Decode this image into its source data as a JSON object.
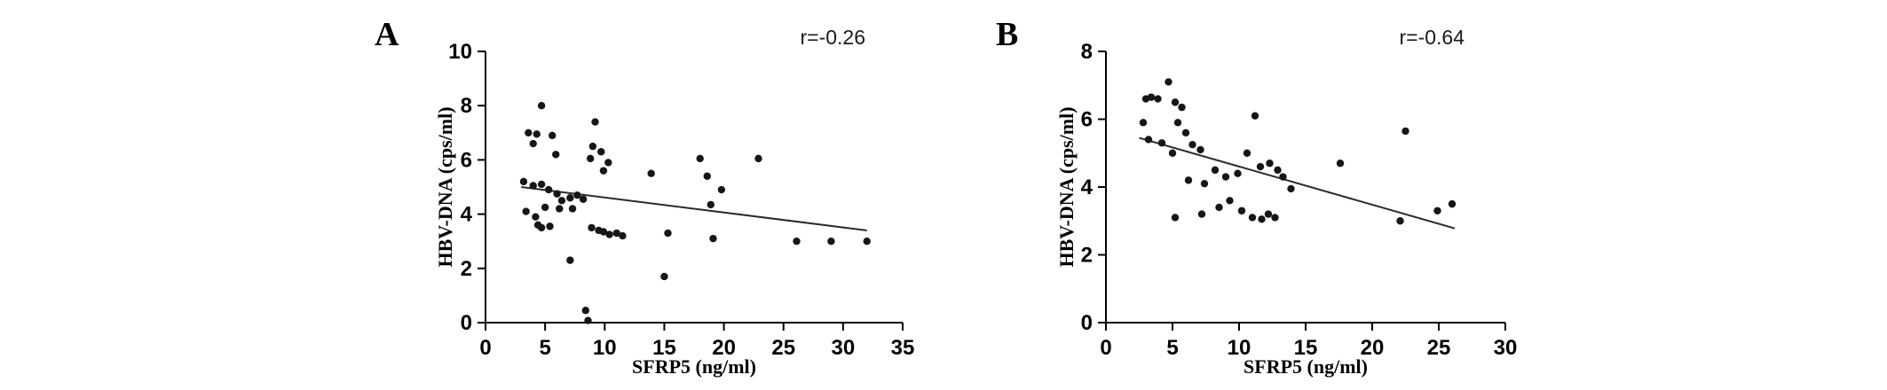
{
  "figure": {
    "background": "#ffffff",
    "ink_color": "#000000",
    "point_color": "#161616"
  },
  "chart_data": [
    {
      "type": "scatter",
      "panel_label": "A",
      "annotation": "r=-0.26",
      "xlabel": "SFRP5 (ng/ml)",
      "ylabel": "HBV-DNA (cps/ml)",
      "xlim": [
        0,
        35
      ],
      "ylim": [
        0,
        10
      ],
      "xticks": [
        0,
        5,
        10,
        15,
        20,
        25,
        30,
        35
      ],
      "yticks": [
        0,
        2,
        4,
        6,
        8,
        10
      ],
      "grid": false,
      "legend": "none",
      "trendline": {
        "x": [
          3,
          32
        ],
        "y": [
          5.0,
          3.4
        ]
      },
      "points": [
        [
          4.7,
          8.0
        ],
        [
          3.6,
          7.0
        ],
        [
          4.3,
          6.95
        ],
        [
          5.6,
          6.9
        ],
        [
          4.0,
          6.6
        ],
        [
          9.2,
          7.4
        ],
        [
          9.0,
          6.5
        ],
        [
          5.9,
          6.2
        ],
        [
          8.8,
          6.05
        ],
        [
          9.7,
          6.3
        ],
        [
          10.3,
          5.9
        ],
        [
          9.9,
          5.6
        ],
        [
          13.9,
          5.5
        ],
        [
          18.0,
          6.05
        ],
        [
          22.9,
          6.05
        ],
        [
          18.6,
          5.4
        ],
        [
          19.8,
          4.9
        ],
        [
          3.2,
          5.2
        ],
        [
          4.0,
          5.05
        ],
        [
          4.7,
          5.1
        ],
        [
          5.3,
          4.9
        ],
        [
          6.0,
          4.75
        ],
        [
          6.4,
          4.5
        ],
        [
          7.1,
          4.6
        ],
        [
          7.7,
          4.7
        ],
        [
          8.2,
          4.55
        ],
        [
          18.9,
          4.35
        ],
        [
          3.4,
          4.1
        ],
        [
          4.2,
          3.9
        ],
        [
          5.0,
          4.25
        ],
        [
          6.2,
          4.2
        ],
        [
          7.3,
          4.2
        ],
        [
          4.4,
          3.6
        ],
        [
          4.7,
          3.5
        ],
        [
          5.4,
          3.55
        ],
        [
          8.9,
          3.5
        ],
        [
          9.5,
          3.4
        ],
        [
          9.9,
          3.35
        ],
        [
          10.4,
          3.25
        ],
        [
          11.0,
          3.3
        ],
        [
          11.5,
          3.2
        ],
        [
          15.3,
          3.3
        ],
        [
          19.1,
          3.1
        ],
        [
          26.1,
          3.0
        ],
        [
          29.0,
          3.0
        ],
        [
          32.0,
          3.0
        ],
        [
          7.1,
          2.3
        ],
        [
          15.0,
          1.7
        ],
        [
          8.4,
          0.45
        ],
        [
          8.6,
          0.08
        ]
      ]
    },
    {
      "type": "scatter",
      "panel_label": "B",
      "annotation": "r=-0.64",
      "xlabel": "SFRP5 (ng/ml)",
      "ylabel": "HBV-DNA (cps/ml)",
      "xlim": [
        0,
        30
      ],
      "ylim": [
        0,
        8
      ],
      "xticks": [
        0,
        5,
        10,
        15,
        20,
        25,
        30
      ],
      "yticks": [
        0,
        2,
        4,
        6,
        8
      ],
      "grid": false,
      "legend": "none",
      "trendline": {
        "x": [
          2.5,
          26.2
        ],
        "y": [
          5.45,
          2.78
        ]
      },
      "points": [
        [
          3.0,
          6.6
        ],
        [
          3.4,
          6.65
        ],
        [
          3.9,
          6.6
        ],
        [
          4.7,
          7.1
        ],
        [
          5.2,
          6.5
        ],
        [
          5.7,
          6.35
        ],
        [
          2.8,
          5.9
        ],
        [
          3.2,
          5.4
        ],
        [
          4.2,
          5.3
        ],
        [
          5.4,
          5.9
        ],
        [
          6.0,
          5.6
        ],
        [
          6.5,
          5.25
        ],
        [
          7.1,
          5.1
        ],
        [
          5.0,
          5.0
        ],
        [
          10.6,
          5.0
        ],
        [
          11.2,
          6.1
        ],
        [
          22.5,
          5.65
        ],
        [
          6.2,
          4.2
        ],
        [
          7.4,
          4.1
        ],
        [
          8.2,
          4.5
        ],
        [
          9.0,
          4.3
        ],
        [
          9.9,
          4.4
        ],
        [
          11.6,
          4.6
        ],
        [
          12.3,
          4.7
        ],
        [
          12.9,
          4.5
        ],
        [
          13.3,
          4.3
        ],
        [
          17.6,
          4.7
        ],
        [
          13.9,
          3.95
        ],
        [
          5.2,
          3.1
        ],
        [
          7.2,
          3.2
        ],
        [
          8.5,
          3.4
        ],
        [
          9.3,
          3.6
        ],
        [
          10.2,
          3.3
        ],
        [
          11.0,
          3.1
        ],
        [
          11.7,
          3.05
        ],
        [
          12.2,
          3.2
        ],
        [
          12.7,
          3.1
        ],
        [
          22.1,
          3.0
        ],
        [
          24.9,
          3.3
        ],
        [
          26.0,
          3.5
        ]
      ]
    }
  ]
}
